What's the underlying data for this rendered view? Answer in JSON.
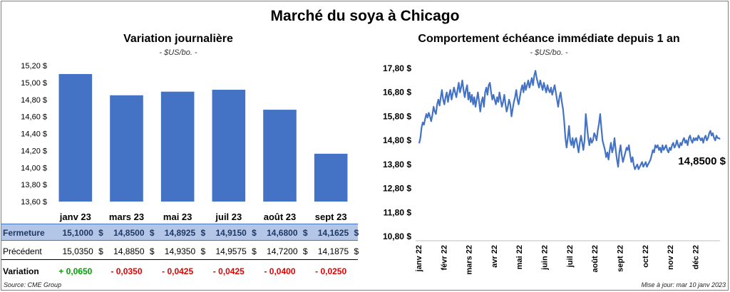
{
  "title": "Marché du soya à Chicago",
  "left_panel": {
    "title": "Variation  journalière",
    "subtitle": "- $US/bo. -"
  },
  "right_panel": {
    "title": "Comportement  échéance immédiate depuis 1 an",
    "subtitle": "- $US/bo. -",
    "last_value_label": "14,8500 $"
  },
  "table": {
    "rows": [
      {
        "label": "Fermeture",
        "values": [
          "15,1000",
          "14,8500",
          "14,8925",
          "14,9150",
          "14,6800",
          "14,1625"
        ],
        "currency": "$"
      },
      {
        "label": "Précédent",
        "values": [
          "15,0350",
          "14,8850",
          "14,9350",
          "14,9575",
          "14,7200",
          "14,1875"
        ],
        "currency": "$"
      },
      {
        "label": "Variation",
        "values": [
          "+ 0,0650",
          "- 0,0350",
          "- 0,0425",
          "- 0,0425",
          "- 0,0400",
          "- 0,0250"
        ]
      }
    ]
  },
  "footer": {
    "source": "Source: CME Group",
    "updated": "Mise à jour: mar 10 janv 2023"
  },
  "colors": {
    "bar": "#4472c4",
    "line": "#4472c4",
    "table_highlight": "#b4c6e7",
    "positive": "#00a000",
    "negative": "#e00000"
  },
  "chart_data": [
    {
      "type": "bar",
      "title": "Variation  journalière",
      "subtitle": "- $US/bo. -",
      "categories": [
        "janv 23",
        "mars 23",
        "mai 23",
        "juil 23",
        "août 23",
        "sept 23"
      ],
      "values": [
        15.1,
        14.85,
        14.8925,
        14.915,
        14.68,
        14.1625
      ],
      "ylim": [
        13.6,
        15.2
      ],
      "yticks": [
        "13,60 $",
        "13,80 $",
        "14,00 $",
        "14,20 $",
        "14,40 $",
        "14,60 $",
        "14,80 $",
        "15,00 $",
        "15,20 $"
      ],
      "grid": false
    },
    {
      "type": "line",
      "title": "Comportement  échéance immédiate depuis 1 an",
      "subtitle": "- $US/bo. -",
      "x_labels": [
        "janv 22",
        "févr 22",
        "mars 22",
        "avr 22",
        "mai 22",
        "juin 22",
        "juil 22",
        "août 22",
        "sept 22",
        "oct 22",
        "nov 22",
        "déc 22"
      ],
      "ylim": [
        10.8,
        17.8
      ],
      "yticks": [
        "10,80 $",
        "11,80 $",
        "12,80 $",
        "13,80 $",
        "14,80 $",
        "15,80 $",
        "16,80 $",
        "17,80 $"
      ],
      "points_per_month": 21,
      "values": [
        14.68,
        14.9,
        15.35,
        15.55,
        15.45,
        15.7,
        15.9,
        15.75,
        15.95,
        15.8,
        15.6,
        15.85,
        16.2,
        16.0,
        15.9,
        16.3,
        16.5,
        16.25,
        16.6,
        16.9,
        16.5,
        16.3,
        16.6,
        16.8,
        16.4,
        16.7,
        16.9,
        16.5,
        16.75,
        17.0,
        16.8,
        16.6,
        16.9,
        17.2,
        16.8,
        17.0,
        17.3,
        16.9,
        16.6,
        16.9,
        17.1,
        16.5,
        16.8,
        16.4,
        16.7,
        16.3,
        16.6,
        16.2,
        16.5,
        16.8,
        16.4,
        16.0,
        16.4,
        16.6,
        16.2,
        16.8,
        17.0,
        16.7,
        17.1,
        17.2,
        16.8,
        16.5,
        16.7,
        16.5,
        16.3,
        16.6,
        16.4,
        16.8,
        16.5,
        16.2,
        16.4,
        16.7,
        16.3,
        16.0,
        16.2,
        16.5,
        16.3,
        15.8,
        16.1,
        16.4,
        16.6,
        16.9,
        16.5,
        16.3,
        16.6,
        16.9,
        17.1,
        16.8,
        17.2,
        16.9,
        17.1,
        17.3,
        17.0,
        17.2,
        17.4,
        17.1,
        17.5,
        17.7,
        17.4,
        17.2,
        17.0,
        17.3,
        17.1,
        16.9,
        17.2,
        17.0,
        16.8,
        17.1,
        16.9,
        16.8,
        17.0,
        16.7,
        16.9,
        17.1,
        16.8,
        16.5,
        16.2,
        16.6,
        16.8,
        16.4,
        16.1,
        15.6,
        14.9,
        14.5,
        14.9,
        15.4,
        14.8,
        14.6,
        14.9,
        14.5,
        14.8,
        14.9,
        14.6,
        14.3,
        14.7,
        15.0,
        14.7,
        14.4,
        14.8,
        15.9,
        15.4,
        14.9,
        14.6,
        14.9,
        14.7,
        14.8,
        15.1,
        15.0,
        14.8,
        15.2,
        15.5,
        15.9,
        15.3,
        14.8,
        14.6,
        14.4,
        14.1,
        14.3,
        14.0,
        14.4,
        14.7,
        14.3,
        14.5,
        14.9,
        14.4,
        14.0,
        13.7,
        14.3,
        14.6,
        14.2,
        13.9,
        14.1,
        14.3,
        14.5,
        14.4,
        14.6,
        14.2,
        13.9,
        14.1,
        13.8,
        13.6,
        13.7,
        13.8,
        13.6,
        13.7,
        13.8,
        13.9,
        13.7,
        13.8,
        13.9,
        13.7,
        13.8,
        13.9,
        14.0,
        14.2,
        14.4,
        14.3,
        14.6,
        14.5,
        14.6,
        14.4,
        14.5,
        14.3,
        14.6,
        14.4,
        14.5,
        14.6,
        14.4,
        14.3,
        14.5,
        14.4,
        14.6,
        14.7,
        14.5,
        14.6,
        14.8,
        14.6,
        14.5,
        14.7,
        14.6,
        14.8,
        14.9,
        14.7,
        14.8,
        14.6,
        14.9,
        15.0,
        14.8,
        14.7,
        14.9,
        14.8,
        14.9,
        14.8,
        15.0,
        14.9,
        14.8,
        14.9,
        14.7,
        14.9,
        15.0,
        14.8,
        14.9,
        15.1,
        15.2,
        15.0,
        15.1,
        14.9,
        14.8,
        15.0,
        14.9,
        14.9,
        14.85
      ],
      "last_value": 14.85
    }
  ]
}
